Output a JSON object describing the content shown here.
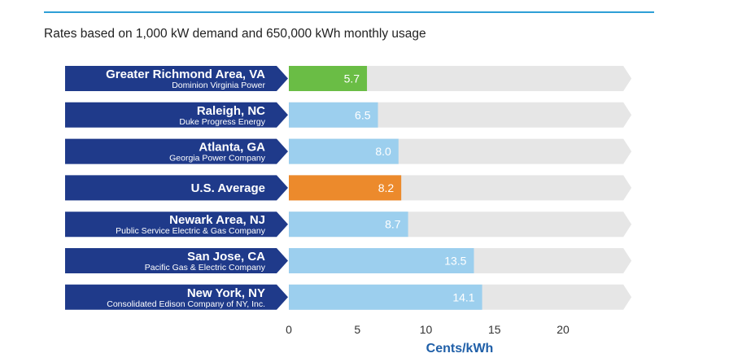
{
  "subtitle": "Rates based on 1,000 kW demand and 650,000 kWh monthly usage",
  "chart_data": {
    "type": "bar",
    "orientation": "horizontal",
    "categories": [
      {
        "name": "Greater Richmond Area, VA",
        "sub": "Dominion Virginia Power"
      },
      {
        "name": "Raleigh, NC",
        "sub": "Duke Progress Energy"
      },
      {
        "name": "Atlanta, GA",
        "sub": "Georgia Power Company"
      },
      {
        "name": "U.S. Average",
        "sub": ""
      },
      {
        "name": "Newark Area, NJ",
        "sub": "Public Service Electric & Gas Company"
      },
      {
        "name": "San Jose, CA",
        "sub": "Pacific Gas & Electric Company"
      },
      {
        "name": "New York, NY",
        "sub": "Consolidated Edison Company of NY, Inc."
      }
    ],
    "values": [
      5.7,
      6.5,
      8.0,
      8.2,
      8.7,
      13.5,
      14.1
    ],
    "value_labels": [
      "5.7",
      "6.5",
      "8.0",
      "8.2",
      "8.7",
      "13.5",
      "14.1"
    ],
    "bar_colors": [
      "#6abd45",
      "#9ccfee",
      "#9ccfee",
      "#ec8a2c",
      "#9ccfee",
      "#9ccfee",
      "#9ccfee"
    ],
    "label_bg_color": "#1f3a8a",
    "track_color": "#e6e6e6",
    "xlabel": "Cents/kWh",
    "xticks": [
      0,
      5,
      10,
      15,
      20
    ],
    "xlim": [
      0,
      24.4
    ]
  }
}
